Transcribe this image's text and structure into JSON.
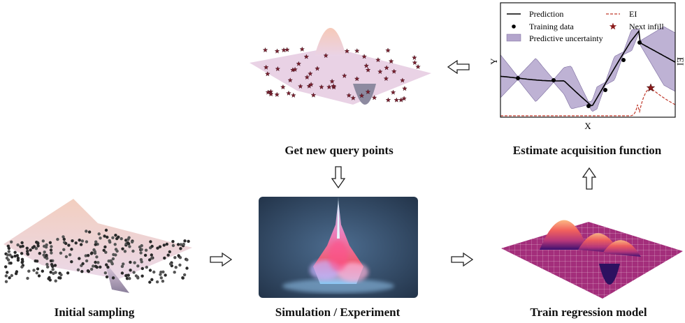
{
  "captions": {
    "initial_sampling": "Initial sampling",
    "simulation": "Simulation / Experiment",
    "train_model": "Train regression model",
    "estimate_acquisition": "Estimate acquisition function",
    "new_query_points": "Get new query points"
  },
  "gp_plot": {
    "xlabel": "X",
    "ylabel": "Y",
    "y2label": "EI",
    "legend": {
      "prediction": "Prediction",
      "ei": "EI",
      "training_data": "Training data",
      "next_infill": "Next infill",
      "uncertainty": "Predictive uncertainty"
    },
    "colors": {
      "prediction": "#000000",
      "ei": "#c0392b",
      "uncertainty": "#b3a5cc",
      "infill": "#8b1a1a"
    }
  },
  "arrows": {
    "initial_to_sim": "right-arrow",
    "sim_to_train": "right-arrow",
    "train_to_estimate": "up-arrow",
    "estimate_to_query": "left-arrow",
    "query_to_sim": "down-arrow"
  }
}
